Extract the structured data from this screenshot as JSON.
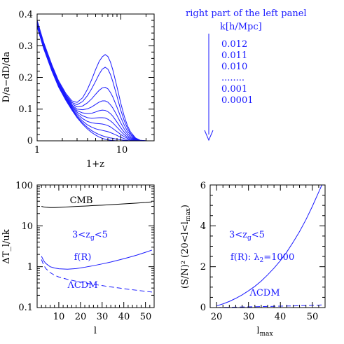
{
  "colors": {
    "blue": "#1a1aff",
    "black": "#000000"
  },
  "legend": {
    "title": "right part of the left panel",
    "header": "k[h/Mpc]",
    "entries": [
      "0.012",
      "0.011",
      "0.010",
      "........",
      "0.001",
      "0.0001"
    ]
  },
  "chart_data": [
    {
      "type": "line",
      "xscale": "log",
      "xlim": [
        1,
        25
      ],
      "ylim": [
        0,
        0.4
      ],
      "xlabel": "1+z",
      "ylabel": "D/a−dD/da",
      "xtick_labels": [
        "1",
        "10"
      ],
      "ytick_labels": [
        "0",
        "0.1",
        "0.2",
        "0.3",
        "0.4"
      ],
      "x": [
        1.0,
        1.2,
        1.5,
        1.8,
        2.2,
        2.6,
        3.0,
        3.5,
        4.0,
        4.5,
        5.0,
        5.5,
        6.0,
        6.5,
        7.0,
        7.5,
        8.0,
        9.0,
        10.0,
        11.0,
        12.0,
        13.0,
        15.0,
        17.0,
        20.0,
        23.0
      ],
      "series": [
        {
          "values": [
            0.36,
            0.29,
            0.22,
            0.17,
            0.128,
            0.097,
            0.073,
            0.052,
            0.037,
            0.026,
            0.018,
            0.012,
            0.008,
            0.005,
            0.003,
            0.002,
            0.001,
            0.0,
            0.0,
            0.0,
            0.0,
            0.0,
            0.0,
            0.0,
            0.0,
            0.0
          ]
        },
        {
          "values": [
            0.362,
            0.292,
            0.222,
            0.172,
            0.13,
            0.099,
            0.076,
            0.056,
            0.042,
            0.032,
            0.025,
            0.02,
            0.016,
            0.013,
            0.011,
            0.009,
            0.008,
            0.005,
            0.003,
            0.002,
            0.001,
            0.0,
            0.0,
            0.0,
            0.0,
            0.0
          ]
        },
        {
          "values": [
            0.364,
            0.294,
            0.224,
            0.174,
            0.132,
            0.101,
            0.08,
            0.062,
            0.05,
            0.043,
            0.038,
            0.035,
            0.033,
            0.031,
            0.029,
            0.026,
            0.023,
            0.017,
            0.011,
            0.007,
            0.004,
            0.002,
            0.001,
            0.0,
            0.0,
            0.0
          ]
        },
        {
          "values": [
            0.366,
            0.296,
            0.226,
            0.176,
            0.134,
            0.104,
            0.085,
            0.07,
            0.061,
            0.057,
            0.055,
            0.054,
            0.053,
            0.051,
            0.048,
            0.044,
            0.039,
            0.029,
            0.02,
            0.013,
            0.008,
            0.004,
            0.001,
            0.0,
            0.0,
            0.0
          ]
        },
        {
          "values": [
            0.368,
            0.298,
            0.228,
            0.178,
            0.136,
            0.107,
            0.09,
            0.079,
            0.073,
            0.071,
            0.072,
            0.073,
            0.073,
            0.072,
            0.068,
            0.063,
            0.057,
            0.043,
            0.03,
            0.019,
            0.012,
            0.007,
            0.002,
            0.0,
            0.0,
            0.0
          ]
        },
        {
          "values": [
            0.37,
            0.3,
            0.23,
            0.18,
            0.138,
            0.11,
            0.095,
            0.088,
            0.086,
            0.087,
            0.091,
            0.095,
            0.097,
            0.096,
            0.092,
            0.086,
            0.078,
            0.059,
            0.041,
            0.027,
            0.017,
            0.01,
            0.003,
            0.001,
            0.0,
            0.0
          ]
        },
        {
          "values": [
            0.372,
            0.302,
            0.232,
            0.182,
            0.14,
            0.113,
            0.1,
            0.098,
            0.101,
            0.107,
            0.115,
            0.122,
            0.126,
            0.126,
            0.122,
            0.114,
            0.104,
            0.08,
            0.056,
            0.037,
            0.023,
            0.014,
            0.004,
            0.001,
            0.0,
            0.0
          ]
        },
        {
          "values": [
            0.374,
            0.304,
            0.234,
            0.184,
            0.143,
            0.117,
            0.107,
            0.11,
            0.12,
            0.133,
            0.147,
            0.159,
            0.167,
            0.169,
            0.164,
            0.153,
            0.139,
            0.106,
            0.074,
            0.049,
            0.031,
            0.019,
            0.005,
            0.001,
            0.0,
            0.0
          ]
        },
        {
          "values": [
            0.376,
            0.306,
            0.236,
            0.186,
            0.146,
            0.121,
            0.114,
            0.124,
            0.143,
            0.165,
            0.188,
            0.21,
            0.226,
            0.232,
            0.226,
            0.21,
            0.188,
            0.14,
            0.096,
            0.063,
            0.04,
            0.024,
            0.007,
            0.001,
            0.0,
            0.0
          ]
        },
        {
          "values": [
            0.38,
            0.31,
            0.24,
            0.19,
            0.15,
            0.126,
            0.121,
            0.136,
            0.163,
            0.194,
            0.225,
            0.25,
            0.265,
            0.272,
            0.266,
            0.249,
            0.225,
            0.17,
            0.118,
            0.077,
            0.048,
            0.029,
            0.009,
            0.002,
            0.0,
            0.0
          ]
        }
      ]
    },
    {
      "type": "line",
      "yscale": "log",
      "xlim": [
        0,
        54
      ],
      "ylim": [
        0.1,
        100
      ],
      "xlabel": "l",
      "ylabel": "ΔT_l/uk",
      "xtick_labels": [
        "10",
        "20",
        "30",
        "40",
        "50"
      ],
      "ytick_labels": [
        "0.1",
        "1",
        "10",
        "100"
      ],
      "labels": {
        "cmb": "CMB",
        "range": "3<z",
        "range_sub": "g",
        "range_end": "<5",
        "fr": "f(R)",
        "lcdm": "ΛCDM"
      },
      "x": [
        2,
        3,
        4,
        6,
        8,
        10,
        14,
        18,
        22,
        26,
        30,
        34,
        38,
        42,
        46,
        50,
        53
      ],
      "series": [
        {
          "values": [
            30,
            29,
            28.5,
            28,
            28,
            28.3,
            29,
            29.8,
            30.5,
            31.3,
            32,
            33,
            34,
            35,
            36,
            37.2,
            38.5
          ]
        },
        {
          "values": [
            1.8,
            1.4,
            1.2,
            1.0,
            0.93,
            0.89,
            0.87,
            0.9,
            0.97,
            1.06,
            1.17,
            1.3,
            1.47,
            1.67,
            1.92,
            2.25,
            2.55
          ]
        },
        {
          "values": [
            1.5,
            1.1,
            0.9,
            0.72,
            0.62,
            0.56,
            0.49,
            0.44,
            0.4,
            0.37,
            0.345,
            0.32,
            0.3,
            0.28,
            0.265,
            0.25,
            0.24
          ]
        }
      ]
    },
    {
      "type": "line",
      "xlim": [
        18,
        54
      ],
      "ylim": [
        0,
        6
      ],
      "xlabel": "l",
      "xlabel_sub": "max",
      "ylabel": "(S/N)² (20<l<l",
      "ylabel_sub": "max",
      "ylabel_end": ")",
      "xtick_labels": [
        "20",
        "30",
        "40",
        "50"
      ],
      "ytick_labels": [
        "0",
        "2",
        "4",
        "6"
      ],
      "labels": {
        "range": "3<z",
        "range_sub": "g",
        "range_end": "<5",
        "fr": "f(R): λ",
        "fr_sub": "2",
        "fr_end": "=1000",
        "lcdm": "ΛCDM"
      },
      "x": [
        20,
        22,
        24,
        26,
        28,
        30,
        32,
        34,
        36,
        38,
        40,
        42,
        44,
        46,
        48,
        50,
        52,
        53
      ],
      "series": [
        {
          "values": [
            0.08,
            0.18,
            0.3,
            0.45,
            0.62,
            0.82,
            1.04,
            1.3,
            1.6,
            1.93,
            2.3,
            2.72,
            3.2,
            3.72,
            4.3,
            4.95,
            5.65,
            6.0
          ]
        },
        {
          "values": [
            0.0,
            0.01,
            0.015,
            0.02,
            0.03,
            0.035,
            0.04,
            0.05,
            0.055,
            0.06,
            0.07,
            0.075,
            0.08,
            0.09,
            0.1,
            0.11,
            0.12,
            0.13
          ]
        }
      ]
    }
  ]
}
